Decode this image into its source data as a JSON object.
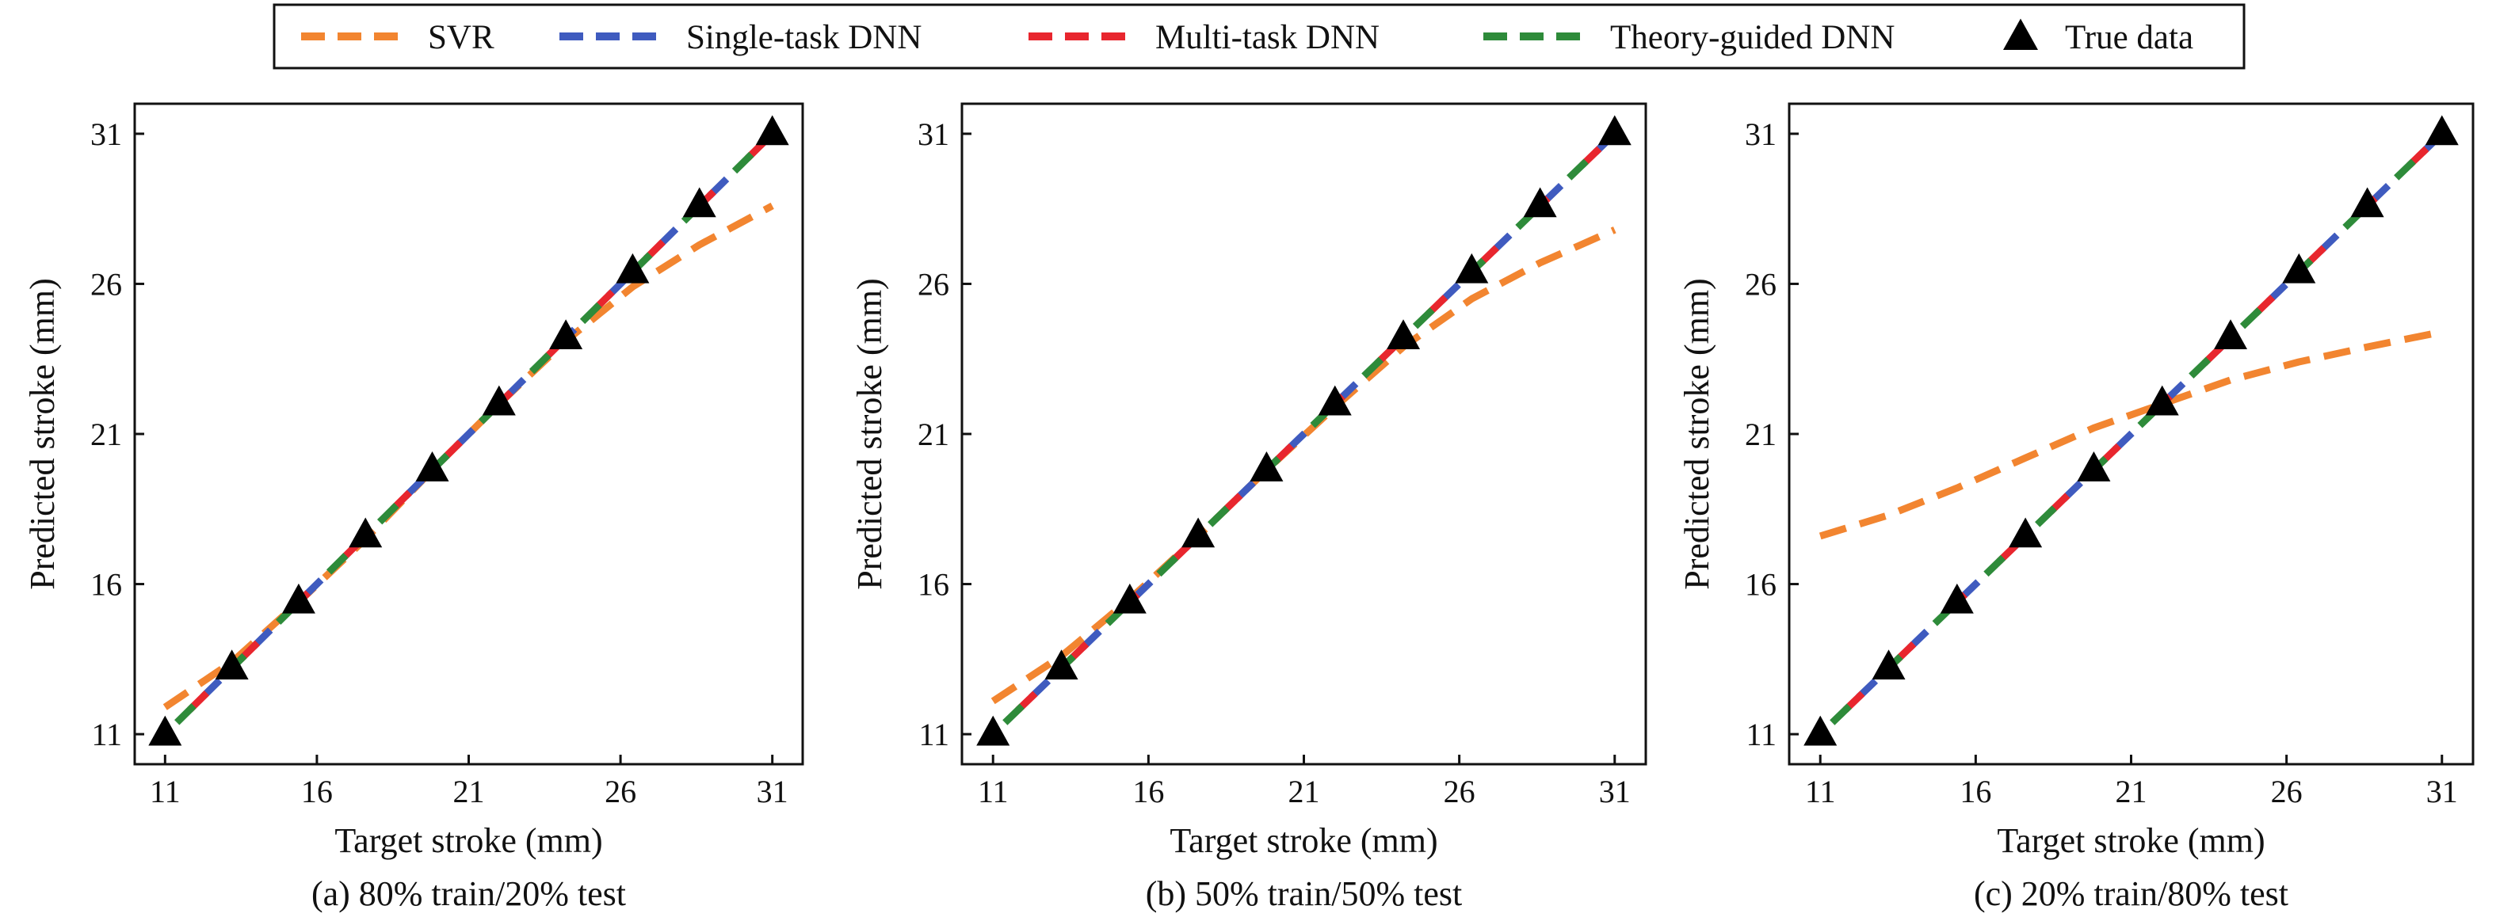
{
  "legend": {
    "entries": [
      {
        "label": "SVR",
        "color": "#F28530",
        "style": "dashed"
      },
      {
        "label": "Single-task DNN",
        "color": "#3F5BBF",
        "style": "dashed"
      },
      {
        "label": "Multi-task DNN",
        "color": "#E8262E",
        "style": "dashed"
      },
      {
        "label": "Theory-guided DNN",
        "color": "#2E8B3A",
        "style": "dashed"
      },
      {
        "label": "True data",
        "color": "#000000",
        "style": "triangle-marker"
      }
    ]
  },
  "chart_data": [
    {
      "type": "line",
      "caption": "(a) 80% train/20% test",
      "xlabel": "Target stroke (mm)",
      "ylabel": "Predicted stroke (mm)",
      "xlim": [
        10,
        32
      ],
      "ylim": [
        10,
        32
      ],
      "xticks": [
        11,
        16,
        21,
        26,
        31
      ],
      "yticks": [
        11,
        16,
        21,
        26,
        31
      ],
      "series": [
        {
          "name": "SVR",
          "color": "#F28530",
          "style": "dashed",
          "x": [
            11,
            13.2,
            15.4,
            17.6,
            19.8,
            22,
            24.2,
            26.4,
            28.6,
            31
          ],
          "y": [
            11.9,
            13.4,
            15.4,
            17.5,
            19.8,
            22.0,
            24.1,
            25.9,
            27.3,
            28.6
          ]
        },
        {
          "name": "Single-task DNN",
          "color": "#3F5BBF",
          "style": "dashed",
          "x": [
            11,
            13.2,
            15.4,
            17.6,
            19.8,
            22,
            24.2,
            26.4,
            28.6,
            31
          ],
          "y": [
            11,
            13.2,
            15.4,
            17.6,
            19.8,
            22,
            24.2,
            26.4,
            28.6,
            31
          ]
        },
        {
          "name": "Multi-task DNN",
          "color": "#E8262E",
          "style": "dashed",
          "x": [
            11,
            13.2,
            15.4,
            17.6,
            19.8,
            22,
            24.2,
            26.4,
            28.6,
            31
          ],
          "y": [
            11,
            13.2,
            15.4,
            17.6,
            19.8,
            22,
            24.2,
            26.4,
            28.6,
            31
          ]
        },
        {
          "name": "Theory-guided DNN",
          "color": "#2E8B3A",
          "style": "dashed",
          "x": [
            11,
            13.2,
            15.4,
            17.6,
            19.8,
            22,
            24.2,
            26.4,
            28.6,
            31
          ],
          "y": [
            11,
            13.2,
            15.4,
            17.6,
            19.8,
            22,
            24.2,
            26.4,
            28.6,
            31
          ]
        },
        {
          "name": "True data",
          "color": "#000000",
          "style": "marker",
          "x": [
            11,
            13.2,
            15.4,
            17.6,
            19.8,
            22,
            24.2,
            26.4,
            28.6,
            31
          ],
          "y": [
            11,
            13.2,
            15.4,
            17.6,
            19.8,
            22,
            24.2,
            26.4,
            28.6,
            31
          ]
        }
      ]
    },
    {
      "type": "line",
      "caption": "(b) 50% train/50% test",
      "xlabel": "Target stroke (mm)",
      "ylabel": "Predicted stroke (mm)",
      "xlim": [
        10,
        32
      ],
      "ylim": [
        10,
        32
      ],
      "xticks": [
        11,
        16,
        21,
        26,
        31
      ],
      "yticks": [
        11,
        16,
        21,
        26,
        31
      ],
      "series": [
        {
          "name": "SVR",
          "color": "#F28530",
          "style": "dashed",
          "x": [
            11,
            13.2,
            15.4,
            17.6,
            19.8,
            22,
            24.2,
            26.4,
            28.6,
            31
          ],
          "y": [
            12.1,
            13.6,
            15.5,
            17.6,
            19.8,
            21.9,
            23.9,
            25.5,
            26.7,
            27.8
          ]
        },
        {
          "name": "Single-task DNN",
          "color": "#3F5BBF",
          "style": "dashed",
          "x": [
            11,
            13.2,
            15.4,
            17.6,
            19.8,
            22,
            24.2,
            26.4,
            28.6,
            31
          ],
          "y": [
            11,
            13.2,
            15.4,
            17.6,
            19.8,
            22,
            24.2,
            26.4,
            28.6,
            31
          ]
        },
        {
          "name": "Multi-task DNN",
          "color": "#E8262E",
          "style": "dashed",
          "x": [
            11,
            13.2,
            15.4,
            17.6,
            19.8,
            22,
            24.2,
            26.4,
            28.6,
            31
          ],
          "y": [
            11,
            13.2,
            15.4,
            17.6,
            19.8,
            22,
            24.2,
            26.4,
            28.6,
            31
          ]
        },
        {
          "name": "Theory-guided DNN",
          "color": "#2E8B3A",
          "style": "dashed",
          "x": [
            11,
            13.2,
            15.4,
            17.6,
            19.8,
            22,
            24.2,
            26.4,
            28.6,
            31
          ],
          "y": [
            11,
            13.2,
            15.4,
            17.6,
            19.8,
            22,
            24.2,
            26.4,
            28.6,
            31
          ]
        },
        {
          "name": "True data",
          "color": "#000000",
          "style": "marker",
          "x": [
            11,
            13.2,
            15.4,
            17.6,
            19.8,
            22,
            24.2,
            26.4,
            28.6,
            31
          ],
          "y": [
            11,
            13.2,
            15.4,
            17.6,
            19.8,
            22,
            24.2,
            26.4,
            28.6,
            31
          ]
        }
      ]
    },
    {
      "type": "line",
      "caption": "(c) 20% train/80% test",
      "xlabel": "Target stroke (mm)",
      "ylabel": "Predicted stroke (mm)",
      "xlim": [
        10,
        32
      ],
      "ylim": [
        10,
        32
      ],
      "xticks": [
        11,
        16,
        21,
        26,
        31
      ],
      "yticks": [
        11,
        16,
        21,
        26,
        31
      ],
      "series": [
        {
          "name": "SVR",
          "color": "#F28530",
          "style": "dashed",
          "x": [
            11,
            13.2,
            15.4,
            17.6,
            19.8,
            22,
            24.2,
            26.4,
            28.6,
            31
          ],
          "y": [
            17.6,
            18.3,
            19.2,
            20.2,
            21.2,
            22.0,
            22.8,
            23.4,
            23.9,
            24.4
          ]
        },
        {
          "name": "Single-task DNN",
          "color": "#3F5BBF",
          "style": "dashed",
          "x": [
            11,
            13.2,
            15.4,
            17.6,
            19.8,
            22,
            24.2,
            26.4,
            28.6,
            31
          ],
          "y": [
            11,
            13.2,
            15.4,
            17.6,
            19.8,
            22,
            24.2,
            26.4,
            28.6,
            31
          ]
        },
        {
          "name": "Multi-task DNN",
          "color": "#E8262E",
          "style": "dashed",
          "x": [
            11,
            13.2,
            15.4,
            17.6,
            19.8,
            22,
            24.2,
            26.4,
            28.6,
            31
          ],
          "y": [
            11,
            13.2,
            15.4,
            17.6,
            19.8,
            22,
            24.2,
            26.4,
            28.6,
            31
          ]
        },
        {
          "name": "Theory-guided DNN",
          "color": "#2E8B3A",
          "style": "dashed",
          "x": [
            11,
            13.2,
            15.4,
            17.6,
            19.8,
            22,
            24.2,
            26.4,
            28.6,
            31
          ],
          "y": [
            11,
            13.2,
            15.4,
            17.6,
            19.8,
            22,
            24.2,
            26.4,
            28.6,
            31
          ]
        },
        {
          "name": "True data",
          "color": "#000000",
          "style": "marker",
          "x": [
            11,
            13.2,
            15.4,
            17.6,
            19.8,
            22,
            24.2,
            26.4,
            28.6,
            31
          ],
          "y": [
            11,
            13.2,
            15.4,
            17.6,
            19.8,
            22,
            24.2,
            26.4,
            28.6,
            31
          ]
        }
      ]
    }
  ]
}
